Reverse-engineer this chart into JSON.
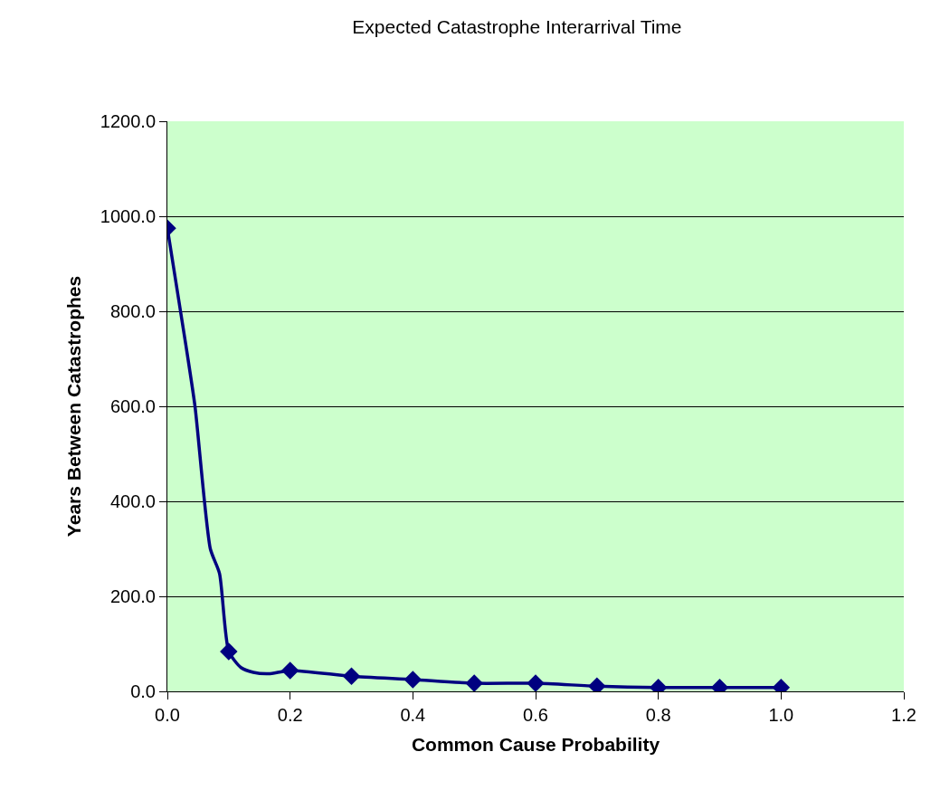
{
  "chart_data": {
    "type": "line",
    "title": "Expected Catastrophe Interarrival Time",
    "xlabel": "Common Cause Probability",
    "ylabel": "Years Between Catastrophes",
    "xlim": [
      0,
      1.2
    ],
    "xticks": [
      {
        "value": 0,
        "label": "0.0"
      },
      {
        "value": 0.2,
        "label": "0.2"
      },
      {
        "value": 0.4,
        "label": "0.4"
      },
      {
        "value": 0.6,
        "label": "0.6"
      },
      {
        "value": 0.8,
        "label": "0.8"
      },
      {
        "value": 1,
        "label": "1.0"
      },
      {
        "value": 1.2,
        "label": "1.2"
      }
    ],
    "ylim": [
      0,
      1200
    ],
    "yticks": [
      {
        "value": 0,
        "label": "0.0"
      },
      {
        "value": 200,
        "label": "200.0"
      },
      {
        "value": 400,
        "label": "400.0"
      },
      {
        "value": 600,
        "label": "600.0"
      },
      {
        "value": 800,
        "label": "800.0"
      },
      {
        "value": 1000,
        "label": "1000.0"
      },
      {
        "value": 1200,
        "label": "1200.0"
      }
    ],
    "grid": "y",
    "series": [
      {
        "color": "#000080",
        "marker": "none",
        "x": [
          0,
          0.03,
          0.045,
          0.07,
          0.085,
          0.1,
          0.12,
          0.14,
          0.165,
          0.2,
          0.3,
          0.4,
          0.5,
          0.6,
          0.7,
          0.8,
          0.9,
          1.0
        ],
        "values": [
          975,
          730,
          600,
          300,
          248,
          84,
          50,
          40,
          37,
          44,
          32,
          25,
          17,
          17,
          11,
          8,
          8,
          8
        ]
      },
      {
        "type": "scatter",
        "color": "#000080",
        "marker": "diamond",
        "x": [
          0,
          0.1,
          0.2,
          0.3,
          0.4,
          0.5,
          0.6,
          0.7,
          0.8,
          0.9,
          1.0
        ],
        "values": [
          975,
          84,
          44,
          32,
          25,
          17,
          17,
          11,
          8,
          8,
          8
        ]
      }
    ]
  }
}
